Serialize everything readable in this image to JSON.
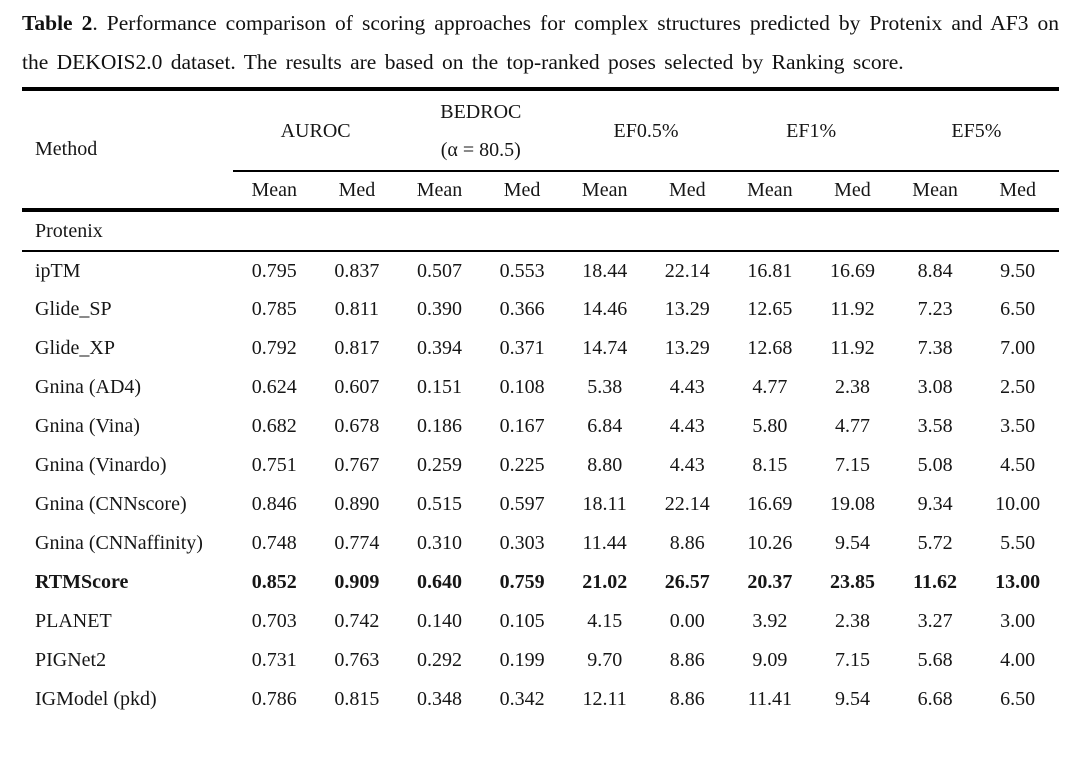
{
  "caption": {
    "label": "Table 2",
    "text": ". Performance comparison of scoring approaches for complex structures predicted by Protenix and AF3 on the DEKOIS2.0 dataset. The results are based on the top-ranked poses selected by Ranking score."
  },
  "table": {
    "method_header": "Method",
    "groups": [
      {
        "label": "AUROC",
        "sub": ""
      },
      {
        "label": "BEDROC",
        "sub": "(α = 80.5)"
      },
      {
        "label": "EF0.5%",
        "sub": ""
      },
      {
        "label": "EF1%",
        "sub": ""
      },
      {
        "label": "EF5%",
        "sub": ""
      }
    ],
    "subheaders": [
      "Mean",
      "Med",
      "Mean",
      "Med",
      "Mean",
      "Med",
      "Mean",
      "Med",
      "Mean",
      "Med"
    ],
    "section": "Protenix",
    "rows": [
      {
        "method": "ipTM",
        "values": [
          "0.795",
          "0.837",
          "0.507",
          "0.553",
          "18.44",
          "22.14",
          "16.81",
          "16.69",
          "8.84",
          "9.50"
        ],
        "bold": false
      },
      {
        "method": "Glide_SP",
        "values": [
          "0.785",
          "0.811",
          "0.390",
          "0.366",
          "14.46",
          "13.29",
          "12.65",
          "11.92",
          "7.23",
          "6.50"
        ],
        "bold": false
      },
      {
        "method": "Glide_XP",
        "values": [
          "0.792",
          "0.817",
          "0.394",
          "0.371",
          "14.74",
          "13.29",
          "12.68",
          "11.92",
          "7.38",
          "7.00"
        ],
        "bold": false
      },
      {
        "method": "Gnina (AD4)",
        "values": [
          "0.624",
          "0.607",
          "0.151",
          "0.108",
          "5.38",
          "4.43",
          "4.77",
          "2.38",
          "3.08",
          "2.50"
        ],
        "bold": false
      },
      {
        "method": "Gnina (Vina)",
        "values": [
          "0.682",
          "0.678",
          "0.186",
          "0.167",
          "6.84",
          "4.43",
          "5.80",
          "4.77",
          "3.58",
          "3.50"
        ],
        "bold": false
      },
      {
        "method": "Gnina (Vinardo)",
        "values": [
          "0.751",
          "0.767",
          "0.259",
          "0.225",
          "8.80",
          "4.43",
          "8.15",
          "7.15",
          "5.08",
          "4.50"
        ],
        "bold": false
      },
      {
        "method": "Gnina (CNNscore)",
        "values": [
          "0.846",
          "0.890",
          "0.515",
          "0.597",
          "18.11",
          "22.14",
          "16.69",
          "19.08",
          "9.34",
          "10.00"
        ],
        "bold": false
      },
      {
        "method": "Gnina (CNNaffinity)",
        "values": [
          "0.748",
          "0.774",
          "0.310",
          "0.303",
          "11.44",
          "8.86",
          "10.26",
          "9.54",
          "5.72",
          "5.50"
        ],
        "bold": false
      },
      {
        "method": "RTMScore",
        "values": [
          "0.852",
          "0.909",
          "0.640",
          "0.759",
          "21.02",
          "26.57",
          "20.37",
          "23.85",
          "11.62",
          "13.00"
        ],
        "bold": true
      },
      {
        "method": "PLANET",
        "values": [
          "0.703",
          "0.742",
          "0.140",
          "0.105",
          "4.15",
          "0.00",
          "3.92",
          "2.38",
          "3.27",
          "3.00"
        ],
        "bold": false
      },
      {
        "method": "PIGNet2",
        "values": [
          "0.731",
          "0.763",
          "0.292",
          "0.199",
          "9.70",
          "8.86",
          "9.09",
          "7.15",
          "5.68",
          "4.00"
        ],
        "bold": false
      },
      {
        "method": "IGModel (pkd)",
        "values": [
          "0.786",
          "0.815",
          "0.348",
          "0.342",
          "12.11",
          "8.86",
          "11.41",
          "9.54",
          "6.68",
          "6.50"
        ],
        "bold": false
      }
    ]
  }
}
